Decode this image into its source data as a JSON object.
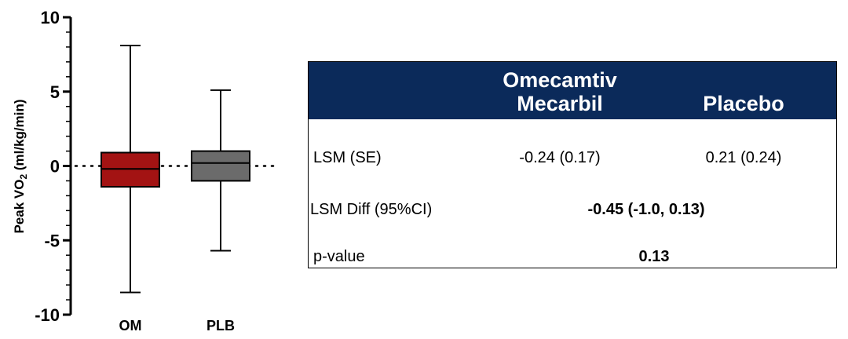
{
  "chart_data": {
    "type": "box",
    "ylabel_main": "Peak VO",
    "ylabel_sub": "2",
    "ylabel_units": " (ml/kg/min)",
    "ylim": [
      -10,
      10
    ],
    "major_ticks": [
      -10,
      -5,
      0,
      5,
      10
    ],
    "tick_labels": [
      "-10",
      "-5",
      "0",
      "5",
      "10"
    ],
    "minor_step": 1,
    "reference_line": 0,
    "categories": [
      "OM",
      "PLB"
    ],
    "boxes": [
      {
        "label": "OM",
        "min": -8.5,
        "q1": -1.4,
        "median": -0.2,
        "q3": 0.9,
        "max": 8.1,
        "color": "#a31313"
      },
      {
        "label": "PLB",
        "min": -5.7,
        "q1": -1.0,
        "median": 0.2,
        "q3": 1.0,
        "max": 5.1,
        "color": "#6b6b6b"
      }
    ]
  },
  "table": {
    "header_color": "#0b2a5a",
    "col1_line1": "Omecamtiv",
    "col1_line2": "Mecarbil",
    "col2": "Placebo",
    "rows": [
      {
        "label": "LSM (SE)",
        "om": "-0.24 (0.17)",
        "plb": "0.21 (0.24)"
      },
      {
        "label": "LSM Diff  (95%CI)",
        "value": "-0.45 (-1.0, 0.13)"
      },
      {
        "label": "p-value",
        "value": "0.13"
      }
    ]
  }
}
